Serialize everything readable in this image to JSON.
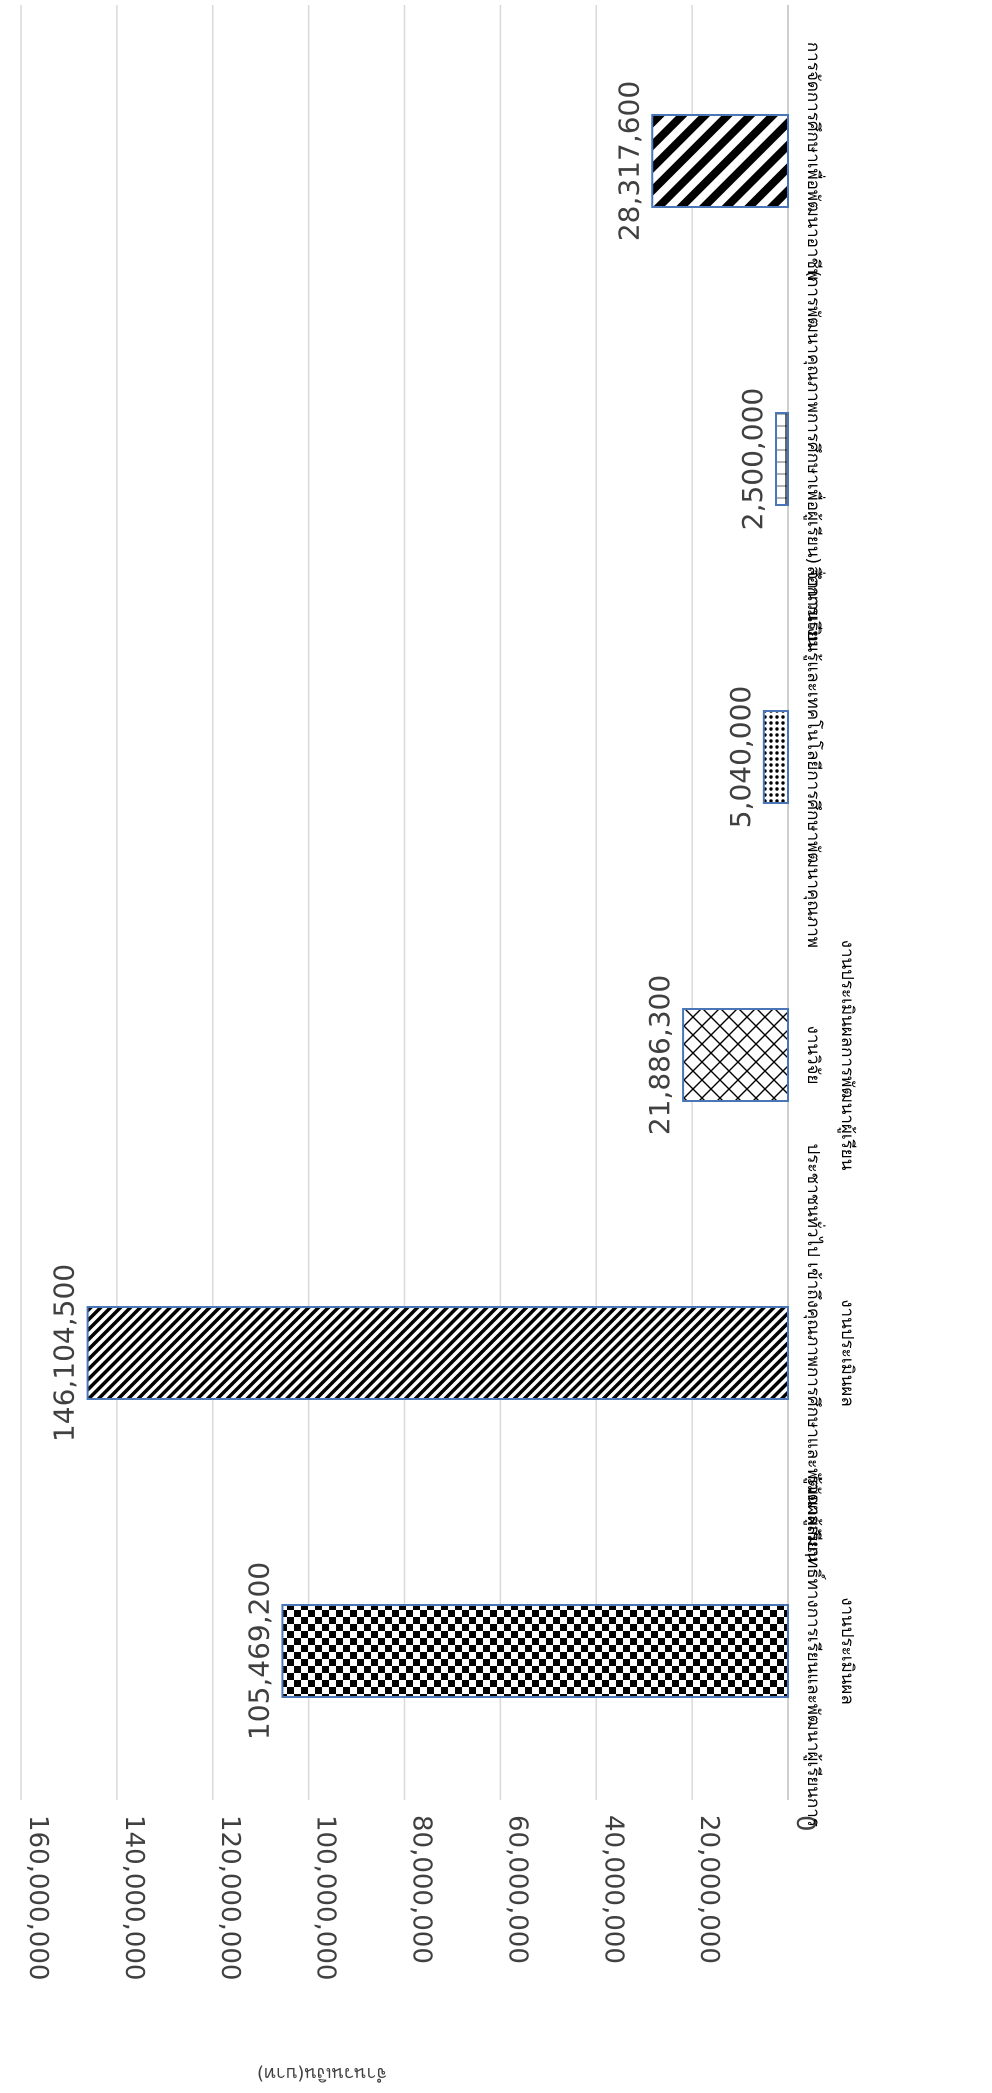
{
  "chart_data": {
    "type": "bar",
    "orientation": "vertical bars, figure rotated 90° clockwise",
    "ylabel": "จำนวนเงิน(บาท)",
    "ylim": [
      0,
      160000000
    ],
    "yticks": [
      0,
      20000000,
      40000000,
      60000000,
      80000000,
      100000000,
      120000000,
      140000000,
      160000000
    ],
    "ytick_labels": [
      "0",
      "20,000,000",
      "40,000,000",
      "60,000,000",
      "80,000,000",
      "100,000,000",
      "120,000,000",
      "140,000,000",
      "160,000,000"
    ],
    "grid": true,
    "legend": "none",
    "categories": [
      {
        "lines": [
          "รู้วัดผลสัมฤทธิ์ทางการเรียนและพัฒนาผู้เรียนการ",
          "งานประเมินผล"
        ]
      },
      {
        "lines": [
          "ประชาชนทั่วไป เข้าถึงคุณภาพการศึกษาและพัฒนาผู้เรียน",
          "งานประเมินผล"
        ]
      },
      {
        "lines": [
          "งานวิจัย",
          "งานประเมินผลการพัฒนาผู้เรียน"
        ]
      },
      {
        "lines": [
          "สื่อการเรียนรู้และเทคโนโลยีการศึกษาพัฒนาคุณภาพ"
        ]
      },
      {
        "lines": [
          "(การพัฒนาคุณภาพการศึกษาเพื่อผู้เรียน) จำนวนเงิน"
        ]
      },
      {
        "lines": [
          "การจัดการศึกษาเพื่อพัฒนาอาชีพ"
        ]
      }
    ],
    "values": [
      105469200,
      146104500,
      21886300,
      5040000,
      2500000,
      28317600
    ],
    "data_labels": [
      "105,469,200",
      "146,104,500",
      "21,886,300",
      "5,040,000",
      "2,500,000",
      "28,317,600"
    ],
    "patterns": [
      "checker",
      "diagonal-fine",
      "crosshatch",
      "dots",
      "vertical-ticks",
      "diagonal-wide"
    ],
    "bar_edge_color": "#4a76b8",
    "grid_color": "#d9d9d9",
    "text_color": "#404040"
  }
}
